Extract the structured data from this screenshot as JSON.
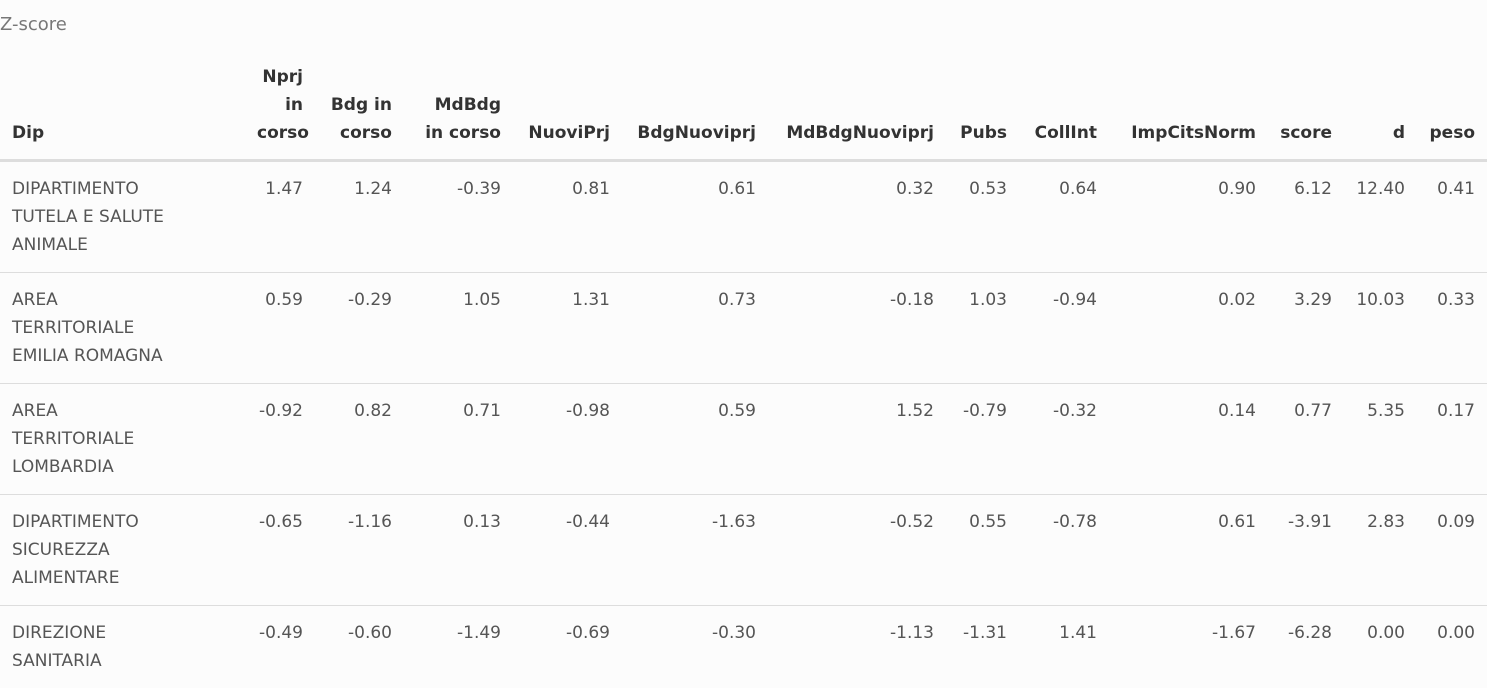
{
  "caption": "Z-score",
  "columns": [
    "Dip",
    "Nprj in corso",
    "Bdg in corso",
    "MdBdg in corso",
    "NuoviPrj",
    "BdgNuoviprj",
    "MdBdgNuoviprj",
    "Pubs",
    "CollInt",
    "ImpCitsNorm",
    "score",
    "d",
    "peso"
  ],
  "rows": [
    [
      "DIPARTIMENTO TUTELA E SALUTE ANIMALE",
      "1.47",
      "1.24",
      "-0.39",
      "0.81",
      "0.61",
      "0.32",
      "0.53",
      "0.64",
      "0.90",
      "6.12",
      "12.40",
      "0.41"
    ],
    [
      "AREA TERRITORIALE EMILIA ROMAGNA",
      "0.59",
      "-0.29",
      "1.05",
      "1.31",
      "0.73",
      "-0.18",
      "1.03",
      "-0.94",
      "0.02",
      "3.29",
      "10.03",
      "0.33"
    ],
    [
      "AREA TERRITORIALE LOMBARDIA",
      "-0.92",
      "0.82",
      "0.71",
      "-0.98",
      "0.59",
      "1.52",
      "-0.79",
      "-0.32",
      "0.14",
      "0.77",
      "5.35",
      "0.17"
    ],
    [
      "DIPARTIMENTO SICUREZZA ALIMENTARE",
      "-0.65",
      "-1.16",
      "0.13",
      "-0.44",
      "-1.63",
      "-0.52",
      "0.55",
      "-0.78",
      "0.61",
      "-3.91",
      "2.83",
      "0.09"
    ],
    [
      "DIREZIONE SANITARIA",
      "-0.49",
      "-0.60",
      "-1.49",
      "-0.69",
      "-0.30",
      "-1.13",
      "-1.31",
      "1.41",
      "-1.67",
      "-6.28",
      "0.00",
      "0.00"
    ]
  ]
}
